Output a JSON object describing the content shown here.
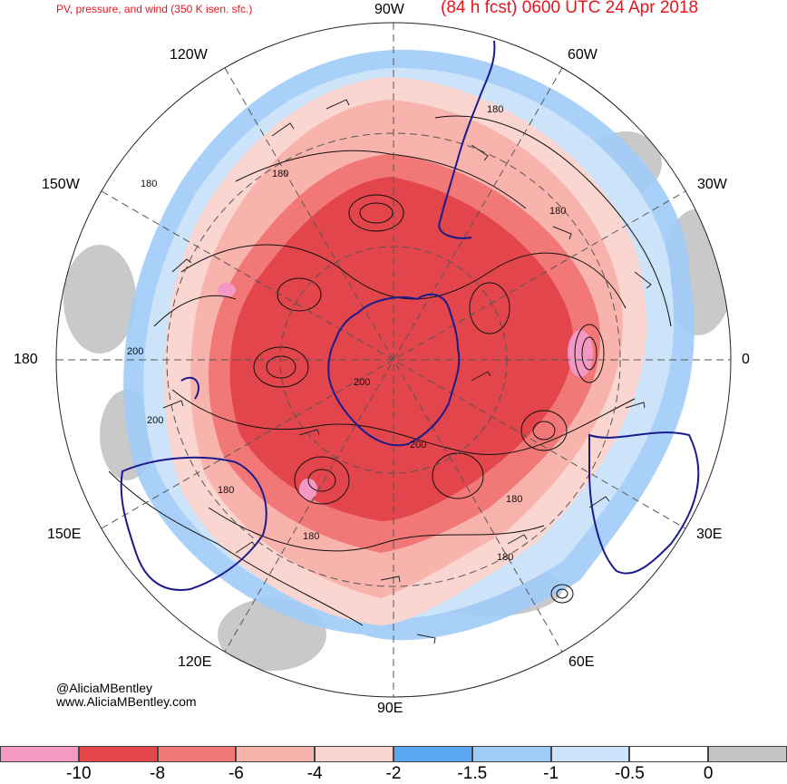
{
  "header": {
    "product_title": "PV, pressure, and wind (350 K isen. sfc.)",
    "forecast_title": "(84 h fcst) 0600 UTC 24 Apr 2018"
  },
  "map": {
    "projection": "south-polar-stereographic",
    "longitude_labels": {
      "top": "90W",
      "upper_left": "120W",
      "upper_right": "60W",
      "left_upper": "150W",
      "right_upper": "30W",
      "left": "180",
      "right": "0",
      "left_lower": "150E",
      "right_lower": "30E",
      "lower_left": "120E",
      "lower_right": "60E",
      "bottom": "90E"
    },
    "contour_labels": [
      "180",
      "180",
      "180",
      "180",
      "180",
      "180",
      "180",
      "180",
      "200",
      "200",
      "200",
      "200"
    ],
    "colors": {
      "coastline": "#1b1b8c",
      "contour": "#111111",
      "graticule": "#555555"
    }
  },
  "credits": {
    "handle": "@AliciaMBentley",
    "site": "www.AliciaMBentley.com"
  },
  "colorbar": {
    "ticks": [
      "-10",
      "-8",
      "-6",
      "-4",
      "-2",
      "-1.5",
      "-1",
      "-0.5",
      "0"
    ],
    "colors": [
      "#f598c4",
      "#e2454b",
      "#f27878",
      "#f8b3ad",
      "#fbd6d0",
      "#5aa8f2",
      "#9fcbf7",
      "#cde3f9",
      "#ffffff",
      "#c4c4c4"
    ]
  }
}
